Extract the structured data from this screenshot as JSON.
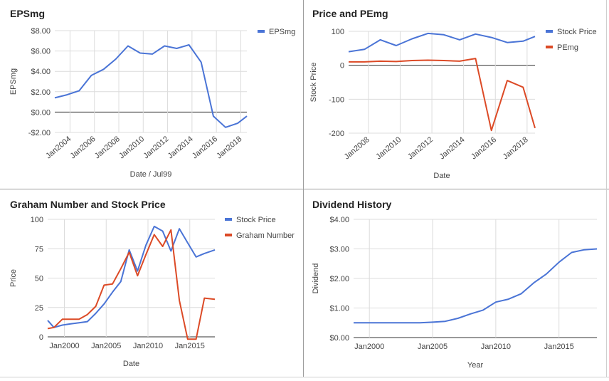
{
  "colors": {
    "blue": "#4a74d6",
    "red": "#dc4a26",
    "grid": "#dcdcdc",
    "axis": "#333333",
    "text": "#444444"
  },
  "chart_data": [
    {
      "type": "line",
      "title": "EPSmg",
      "xlabel": "Date / Jul99",
      "ylabel": "EPSmg",
      "x_tick_labels": [
        "Jan2004",
        "Jan2006",
        "Jan2008",
        "Jan2010",
        "Jan2012",
        "Jan2014",
        "Jan2016",
        "Jan2018"
      ],
      "x_ticks": [
        2004,
        2006,
        2008,
        2010,
        2012,
        2014,
        2016,
        2018
      ],
      "xlim": [
        2002.75,
        2018.5
      ],
      "ylim": [
        -2,
        8
      ],
      "y_ticks": [
        -2,
        0,
        2,
        4,
        6,
        8
      ],
      "y_tick_labels": [
        "-$2.00",
        "$0.00",
        "$2.00",
        "$4.00",
        "$6.00",
        "$8.00"
      ],
      "legend_position": "right",
      "series": [
        {
          "name": "EPSmg",
          "color": "#4a74d6",
          "x": [
            2002.75,
            2003.75,
            2004.75,
            2005.75,
            2006.75,
            2007.75,
            2008.75,
            2009.75,
            2010.75,
            2011.75,
            2012.75,
            2013.75,
            2014.75,
            2015.75,
            2016.75,
            2017.75,
            2018.5
          ],
          "y": [
            1.4,
            1.7,
            2.1,
            3.6,
            4.2,
            5.2,
            6.5,
            5.8,
            5.7,
            6.5,
            6.25,
            6.6,
            4.9,
            -0.4,
            -1.5,
            -1.1,
            -0.4
          ]
        }
      ]
    },
    {
      "type": "line",
      "title": "Price and PEmg",
      "xlabel": "Date",
      "ylabel": "Stock Price",
      "x_tick_labels": [
        "Jan2008",
        "Jan2010",
        "Jan2012",
        "Jan2014",
        "Jan2016",
        "Jan2018"
      ],
      "x_ticks": [
        2008,
        2010,
        2012,
        2014,
        2016,
        2018
      ],
      "xlim": [
        2006.75,
        2018.5
      ],
      "ylim": [
        -200,
        100
      ],
      "y_ticks": [
        -200,
        -100,
        0,
        100
      ],
      "y_tick_labels": [
        "-200",
        "-100",
        "0",
        "100"
      ],
      "legend_position": "right",
      "series": [
        {
          "name": "Stock Price",
          "color": "#4a74d6",
          "x": [
            2006.75,
            2007.75,
            2008.75,
            2009.75,
            2010.75,
            2011.75,
            2012.75,
            2013.75,
            2014.75,
            2015.75,
            2016.75,
            2017.75,
            2018.5
          ],
          "y": [
            40,
            47,
            75,
            58,
            78,
            94,
            90,
            75,
            92,
            82,
            67,
            71,
            85
          ]
        },
        {
          "name": "PEmg",
          "color": "#dc4a26",
          "x": [
            2006.75,
            2007.75,
            2008.75,
            2009.75,
            2010.75,
            2011.75,
            2012.75,
            2013.75,
            2014.75,
            2015.75,
            2016.75,
            2017.75,
            2018.5
          ],
          "y": [
            10,
            10,
            12,
            11,
            14,
            15,
            14,
            12,
            20,
            -192,
            -45,
            -65,
            -185
          ]
        }
      ]
    },
    {
      "type": "line",
      "title": "Graham Number and Stock Price",
      "xlabel": "Date",
      "ylabel": "Price",
      "x_tick_labels": [
        "Jan2000",
        "Jan2005",
        "Jan2010",
        "Jan2015"
      ],
      "x_ticks": [
        2000,
        2005,
        2010,
        2015
      ],
      "xlim": [
        1998,
        2018
      ],
      "ylim": [
        0,
        100
      ],
      "y_ticks": [
        0,
        25,
        50,
        75,
        100
      ],
      "y_tick_labels": [
        "0",
        "25",
        "50",
        "75",
        "100"
      ],
      "legend_position": "right",
      "series": [
        {
          "name": "Stock Price",
          "color": "#4a74d6",
          "x": [
            1998,
            1998.75,
            1999.75,
            2000.75,
            2001.75,
            2002.75,
            2003.75,
            2004.75,
            2005.75,
            2006.75,
            2007.75,
            2008.75,
            2009.75,
            2010.75,
            2011.75,
            2012.75,
            2013.75,
            2014.75,
            2015.75,
            2016.75,
            2018
          ],
          "y": [
            14,
            8,
            10,
            11,
            12,
            13,
            20,
            28,
            38,
            47,
            74,
            56,
            78,
            94,
            90,
            73,
            92,
            80,
            68,
            71,
            74
          ]
        },
        {
          "name": "Graham Number",
          "color": "#dc4a26",
          "x": [
            1998,
            1998.75,
            1999.75,
            2000.75,
            2001.75,
            2002.75,
            2003.75,
            2004.75,
            2005.75,
            2006.75,
            2007.75,
            2008.75,
            2009.75,
            2010.75,
            2011.75,
            2012.75,
            2013.75,
            2014.75,
            2015.75,
            2016.75,
            2018
          ],
          "y": [
            7,
            8,
            15,
            15,
            15,
            19,
            26,
            44,
            45,
            58,
            72,
            52,
            70,
            87,
            77,
            91,
            31,
            -2,
            -2,
            33,
            32
          ]
        }
      ]
    },
    {
      "type": "line",
      "title": "Dividend History",
      "xlabel": "Year",
      "ylabel": "Dividend",
      "x_tick_labels": [
        "Jan2000",
        "Jan2005",
        "Jan2010",
        "Jan2015"
      ],
      "x_ticks": [
        2000,
        2005,
        2010,
        2015
      ],
      "xlim": [
        1998.75,
        2018
      ],
      "ylim": [
        0,
        4
      ],
      "y_ticks": [
        0,
        1,
        2,
        3,
        4
      ],
      "y_tick_labels": [
        "$0.00",
        "$1.00",
        "$2.00",
        "$3.00",
        "$4.00"
      ],
      "legend_position": "none",
      "series": [
        {
          "name": "",
          "color": "#4a74d6",
          "x": [
            1998.75,
            2000,
            2001,
            2002,
            2003,
            2004,
            2005,
            2006,
            2007,
            2008,
            2009,
            2010,
            2011,
            2012,
            2013,
            2014,
            2015,
            2016,
            2017,
            2018
          ],
          "y": [
            0.5,
            0.5,
            0.5,
            0.5,
            0.5,
            0.5,
            0.52,
            0.55,
            0.65,
            0.8,
            0.93,
            1.2,
            1.3,
            1.48,
            1.85,
            2.15,
            2.55,
            2.88,
            2.97,
            3.0
          ]
        }
      ]
    }
  ]
}
